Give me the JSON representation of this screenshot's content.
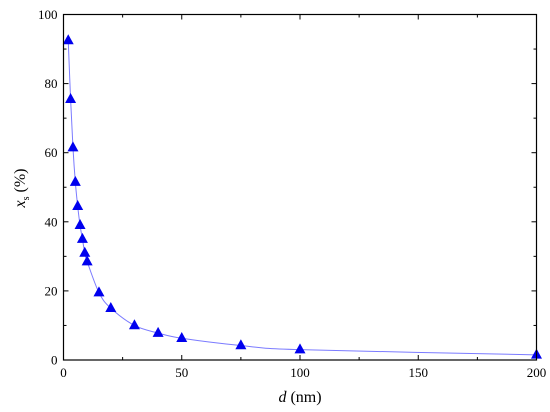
{
  "chart_data": {
    "type": "line",
    "xlabel": {
      "var": "d",
      "unit": " (nm)"
    },
    "ylabel": {
      "var": "x",
      "sub": "s",
      "unit": " (%)"
    },
    "xlim": [
      0,
      200
    ],
    "ylim": [
      0,
      100
    ],
    "xticks": [
      0,
      50,
      100,
      150,
      200
    ],
    "yticks": [
      0,
      20,
      40,
      60,
      80,
      100
    ],
    "grid": false,
    "marker": "triangle",
    "colors": {
      "marker": "#0000ee",
      "line": "#7b7bff",
      "axis": "#000000"
    },
    "series": [
      {
        "x": [
          2,
          3,
          4,
          5,
          6,
          7,
          8,
          9,
          10,
          15,
          20,
          30,
          40,
          50,
          75,
          100,
          200
        ],
        "y": [
          92.5,
          75.5,
          61.5,
          51.5,
          44.5,
          39,
          35,
          31,
          28.5,
          19.5,
          15,
          10,
          7.8,
          6.3,
          4.2,
          3,
          1.5
        ]
      }
    ]
  }
}
